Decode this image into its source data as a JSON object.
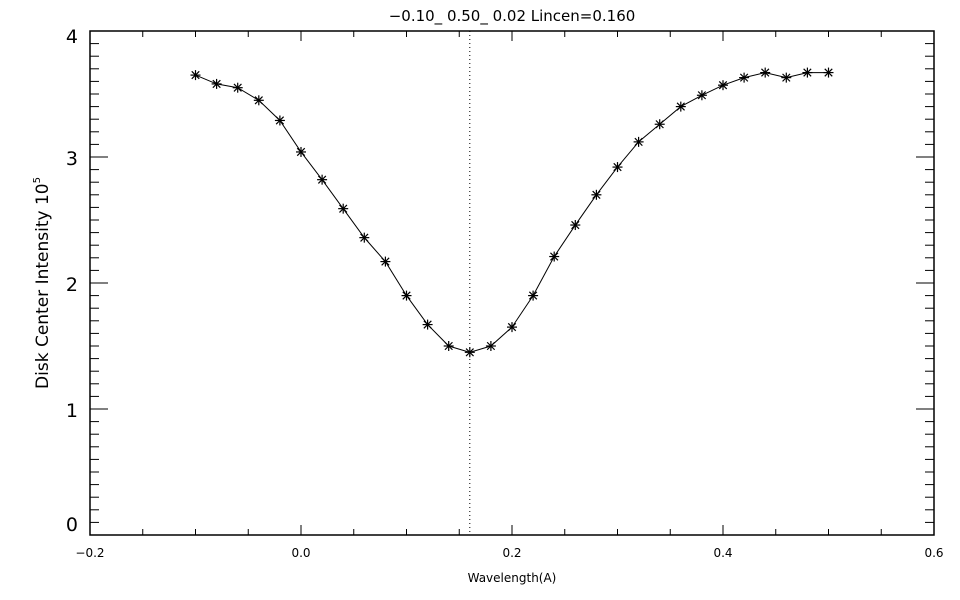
{
  "chart_data": {
    "type": "line",
    "title": "−0.10_  0.50_  0.02   Lincen=0.160",
    "xlabel": "Wavelength(A)",
    "ylabel": "Disk Center Intensity 10",
    "ylabel_exponent": "5",
    "xlim": [
      -0.2,
      0.6
    ],
    "ylim": [
      0,
      4
    ],
    "xticks": [
      -0.2,
      0.0,
      0.2,
      0.4,
      0.6
    ],
    "xtick_labels": [
      "−0.2",
      "0.0",
      "0.2",
      "0.4",
      "0.6"
    ],
    "yticks": [
      0,
      1,
      2,
      3,
      4
    ],
    "ytick_labels": [
      "0",
      "1",
      "2",
      "3",
      "4"
    ],
    "grid": false,
    "marker": "asterisk",
    "vline": 0.16,
    "x": [
      -0.1,
      -0.08,
      -0.06,
      -0.04,
      -0.02,
      0.0,
      0.02,
      0.04,
      0.06,
      0.08,
      0.1,
      0.12,
      0.14,
      0.16,
      0.18,
      0.2,
      0.22,
      0.24,
      0.26,
      0.28,
      0.3,
      0.32,
      0.34,
      0.36,
      0.38,
      0.4,
      0.42,
      0.44,
      0.46,
      0.48,
      0.5
    ],
    "y": [
      3.65,
      3.58,
      3.55,
      3.45,
      3.29,
      3.04,
      2.82,
      2.59,
      2.36,
      2.17,
      1.9,
      1.67,
      1.5,
      1.45,
      1.5,
      1.65,
      1.9,
      2.21,
      2.46,
      2.7,
      2.92,
      3.12,
      3.26,
      3.4,
      3.49,
      3.57,
      3.63,
      3.67,
      3.63,
      3.67,
      3.67
    ]
  }
}
